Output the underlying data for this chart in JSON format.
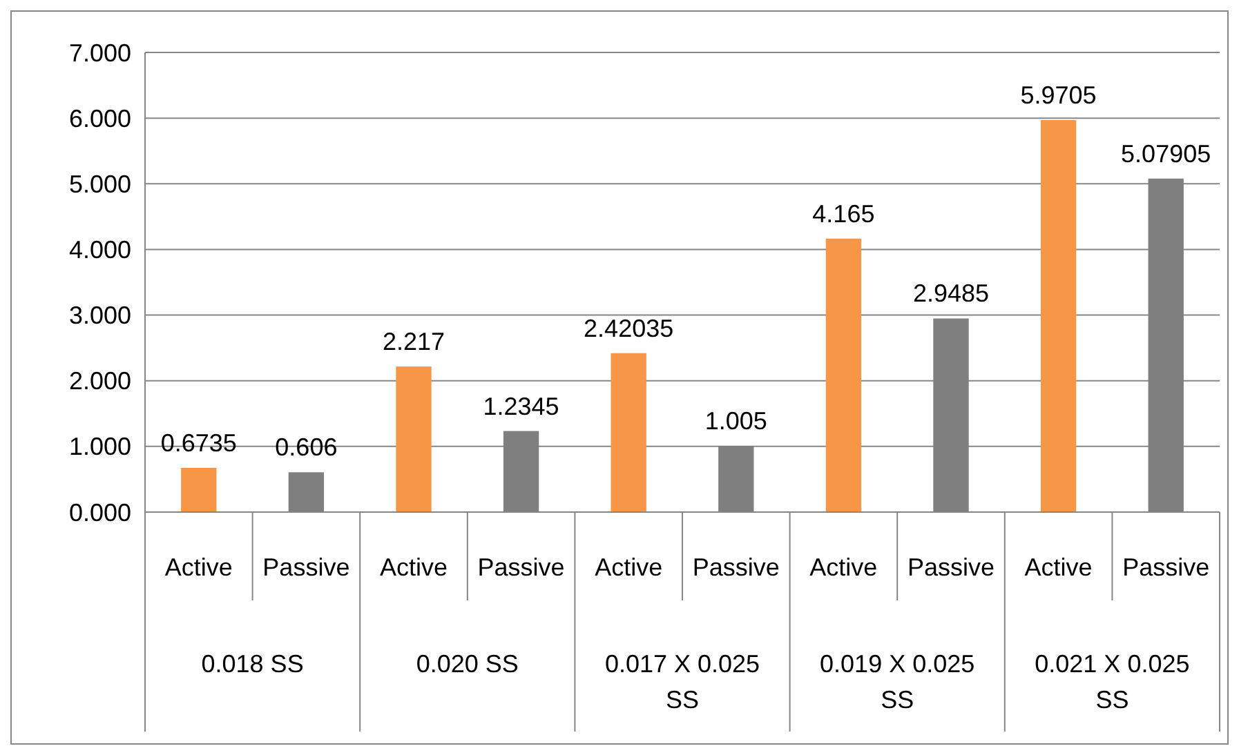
{
  "chart_data": {
    "type": "bar",
    "categories": [
      "Active",
      "Passive",
      "Active",
      "Passive",
      "Active",
      "Passive",
      "Active",
      "Passive",
      "Active",
      "Passive"
    ],
    "values": [
      0.6735,
      0.606,
      2.217,
      1.2345,
      2.42035,
      1.005,
      4.165,
      2.9485,
      5.9705,
      5.07905
    ],
    "colors": [
      "#f79646",
      "#7f7f7f",
      "#f79646",
      "#7f7f7f",
      "#f79646",
      "#7f7f7f",
      "#f79646",
      "#7f7f7f",
      "#f79646",
      "#7f7f7f"
    ],
    "ylim": [
      0,
      7
    ],
    "yticks": [
      {
        "value": 0,
        "label": "0.000"
      },
      {
        "value": 1,
        "label": "1.000"
      },
      {
        "value": 2,
        "label": "2.000"
      },
      {
        "value": 3,
        "label": "3.000"
      },
      {
        "value": 4,
        "label": "4.000"
      },
      {
        "value": 5,
        "label": "5.000"
      },
      {
        "value": 6,
        "label": "6.000"
      },
      {
        "value": 7,
        "label": "7.000"
      }
    ],
    "grid": "y",
    "data_labels": true,
    "annotations": [
      "0.018 SS",
      "0.020 SS",
      "0.017 X 0.025 SS",
      "0.019 X 0.025 SS",
      "0.021 X 0.025 SS"
    ]
  }
}
